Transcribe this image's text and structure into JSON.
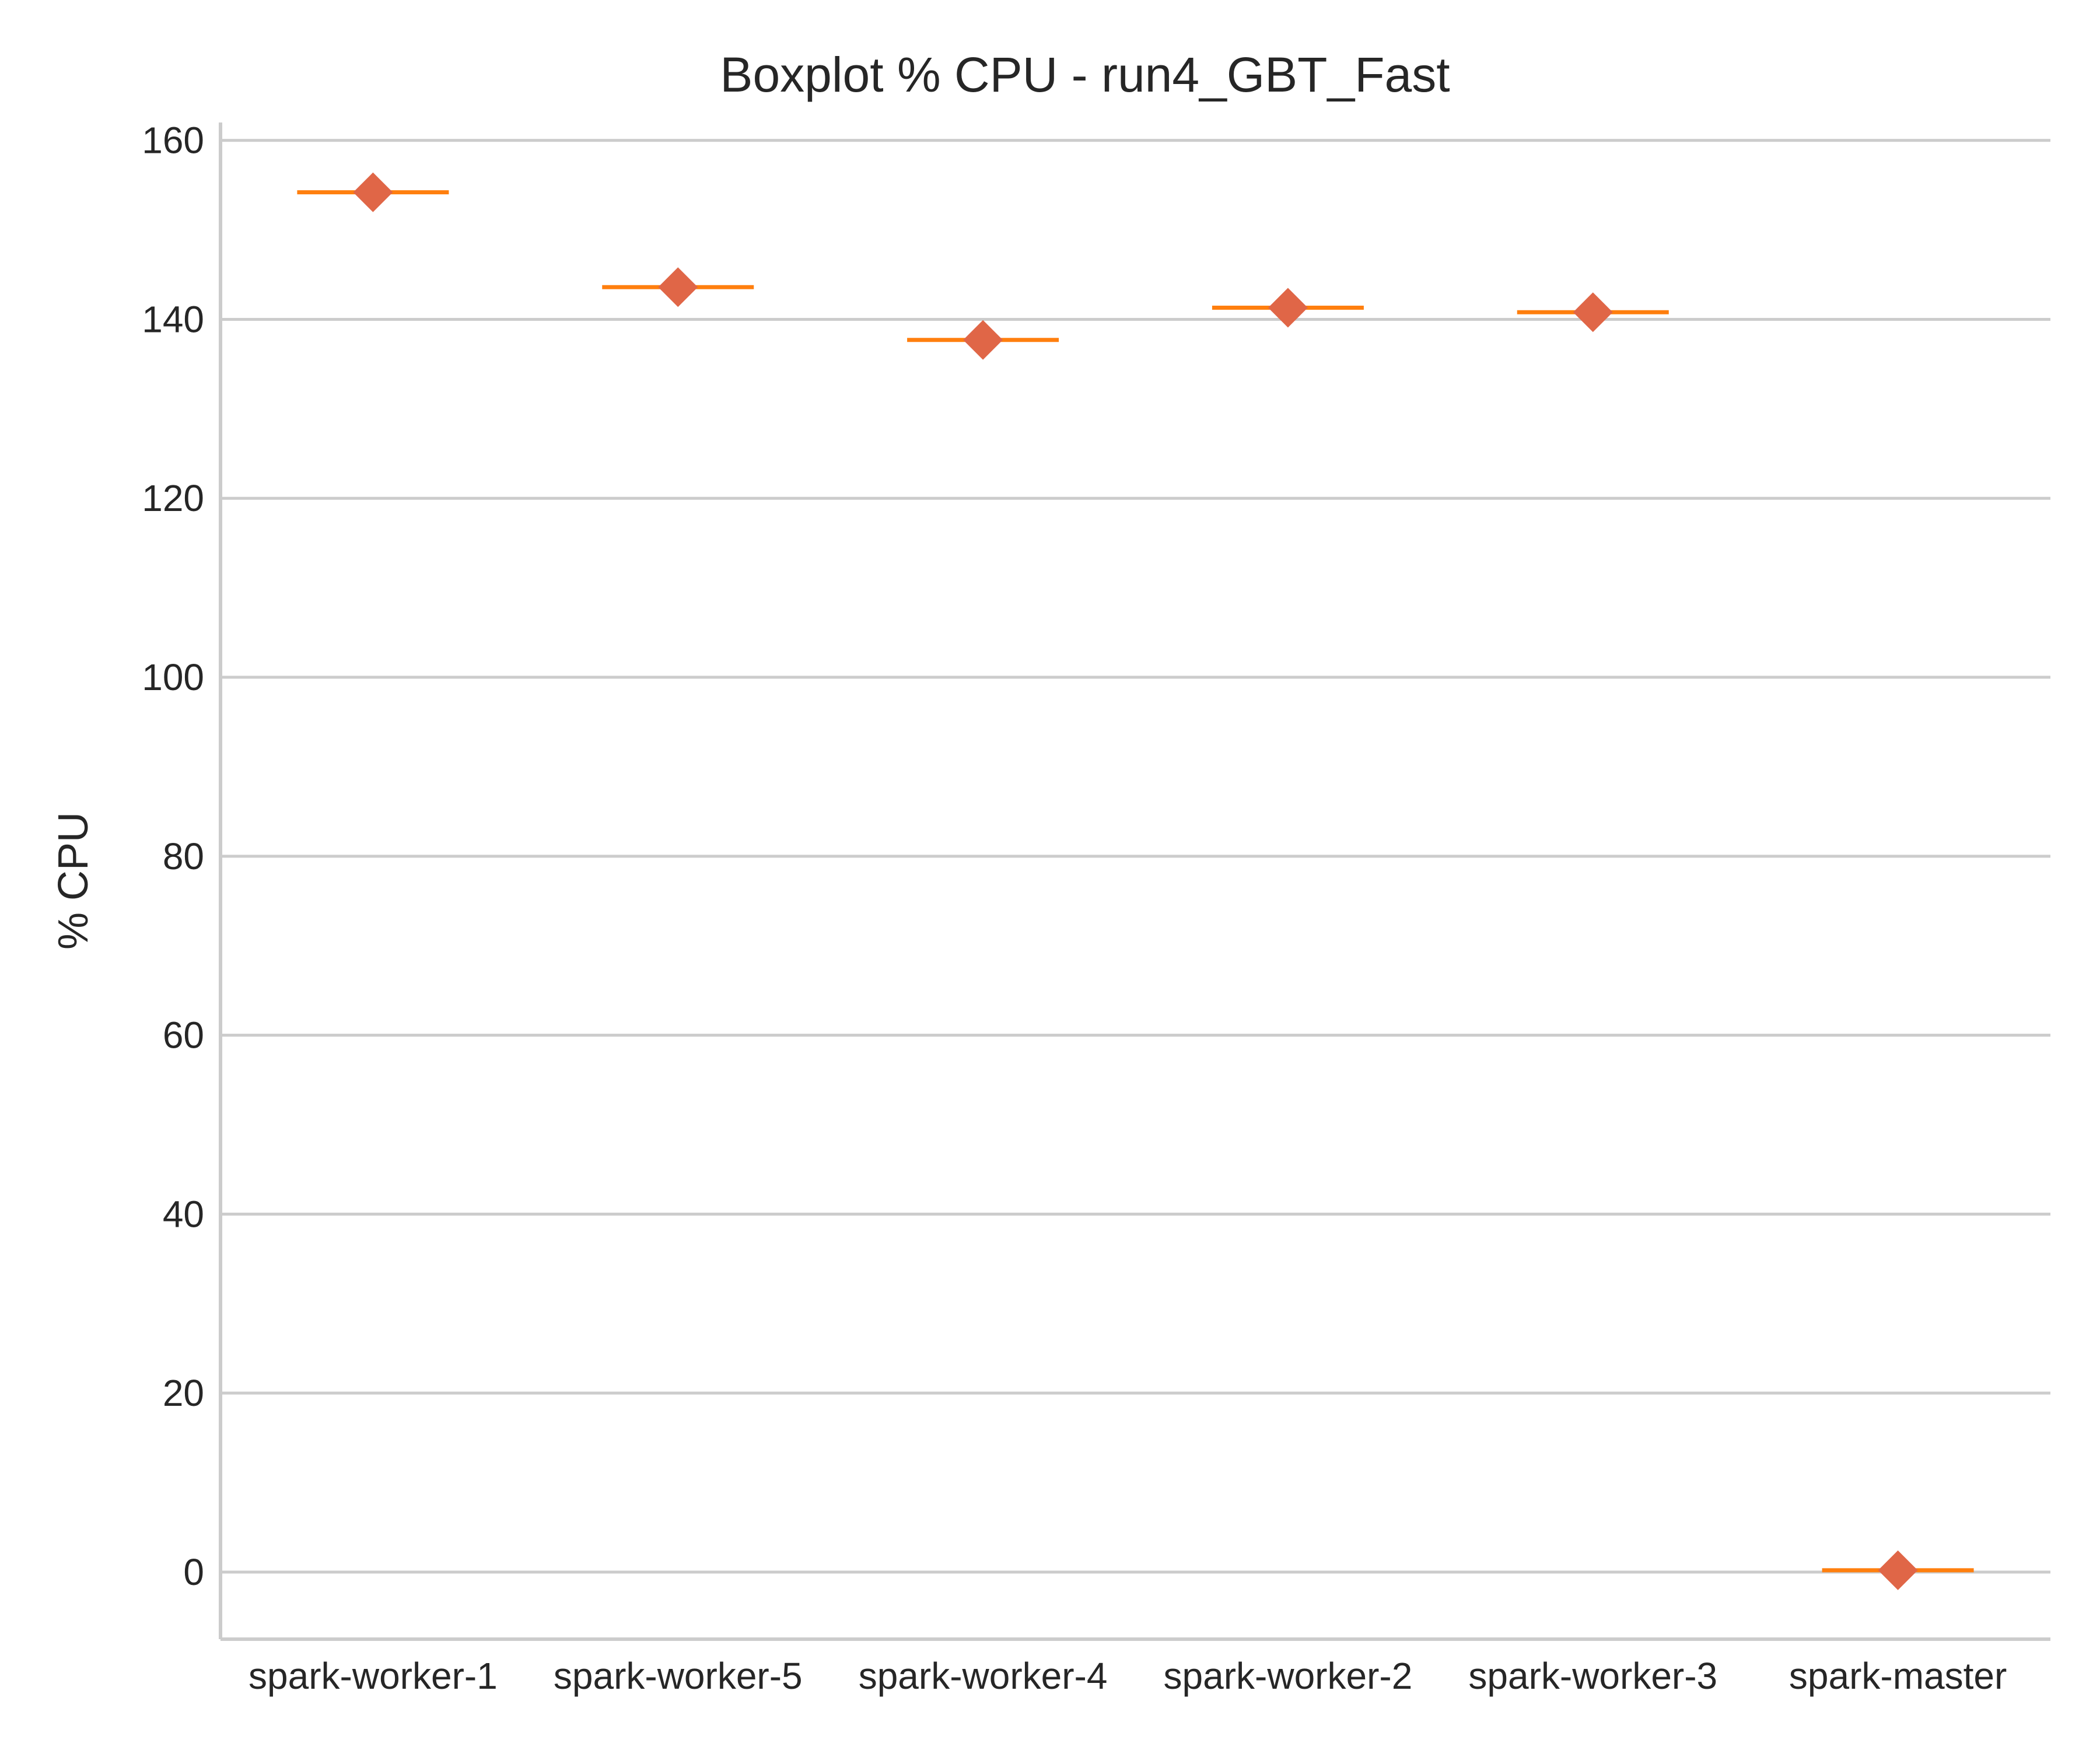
{
  "chart_data": {
    "type": "box",
    "title": "Boxplot % CPU - run4_GBT_Fast",
    "xlabel": "",
    "ylabel": "% CPU",
    "ylim": [
      -7.5,
      162
    ],
    "yticks": [
      0,
      20,
      40,
      60,
      80,
      100,
      120,
      140,
      160
    ],
    "grid": "horizontal",
    "categories": [
      "spark-worker-1",
      "spark-worker-5",
      "spark-worker-4",
      "spark-worker-2",
      "spark-worker-3",
      "spark-master"
    ],
    "medians": [
      154.2,
      143.6,
      137.7,
      141.3,
      140.8,
      0.2
    ],
    "means": [
      154.2,
      143.6,
      137.7,
      141.3,
      140.8,
      0.2
    ],
    "colors": {
      "median_line": "#ff7f0e",
      "mean_marker": "#e06647",
      "grid": "#cccccc",
      "axis": "#cccccc",
      "text": "#262626"
    }
  }
}
